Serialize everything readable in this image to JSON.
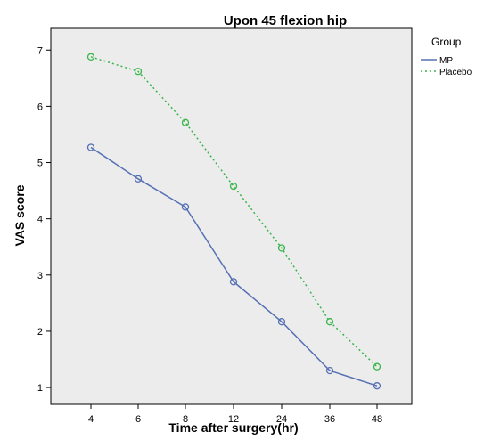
{
  "chart_data": {
    "type": "line",
    "title": "Upon 45 flexion hip",
    "xlabel": "Time after surgery(hr)",
    "ylabel": "VAS score",
    "categories": [
      "4",
      "6",
      "8",
      "12",
      "24",
      "36",
      "48"
    ],
    "ylim": [
      0.7,
      7.4
    ],
    "yticks": [
      1,
      2,
      3,
      4,
      5,
      6,
      7
    ],
    "grid": false,
    "legend": {
      "title": "Group",
      "placement": "top-right, outside plot"
    },
    "series": [
      {
        "name": "MP",
        "values": [
          5.27,
          4.71,
          4.21,
          2.88,
          2.17,
          1.3,
          1.03
        ],
        "color": "#5670b4",
        "style": "solid",
        "marker": "open-circle"
      },
      {
        "name": "Placebo",
        "values": [
          6.88,
          6.62,
          5.71,
          4.58,
          3.48,
          2.17,
          1.37
        ],
        "color": "#39b54a",
        "style": "dotted",
        "marker": "open-circle"
      }
    ],
    "plot_background": "#ececec"
  }
}
